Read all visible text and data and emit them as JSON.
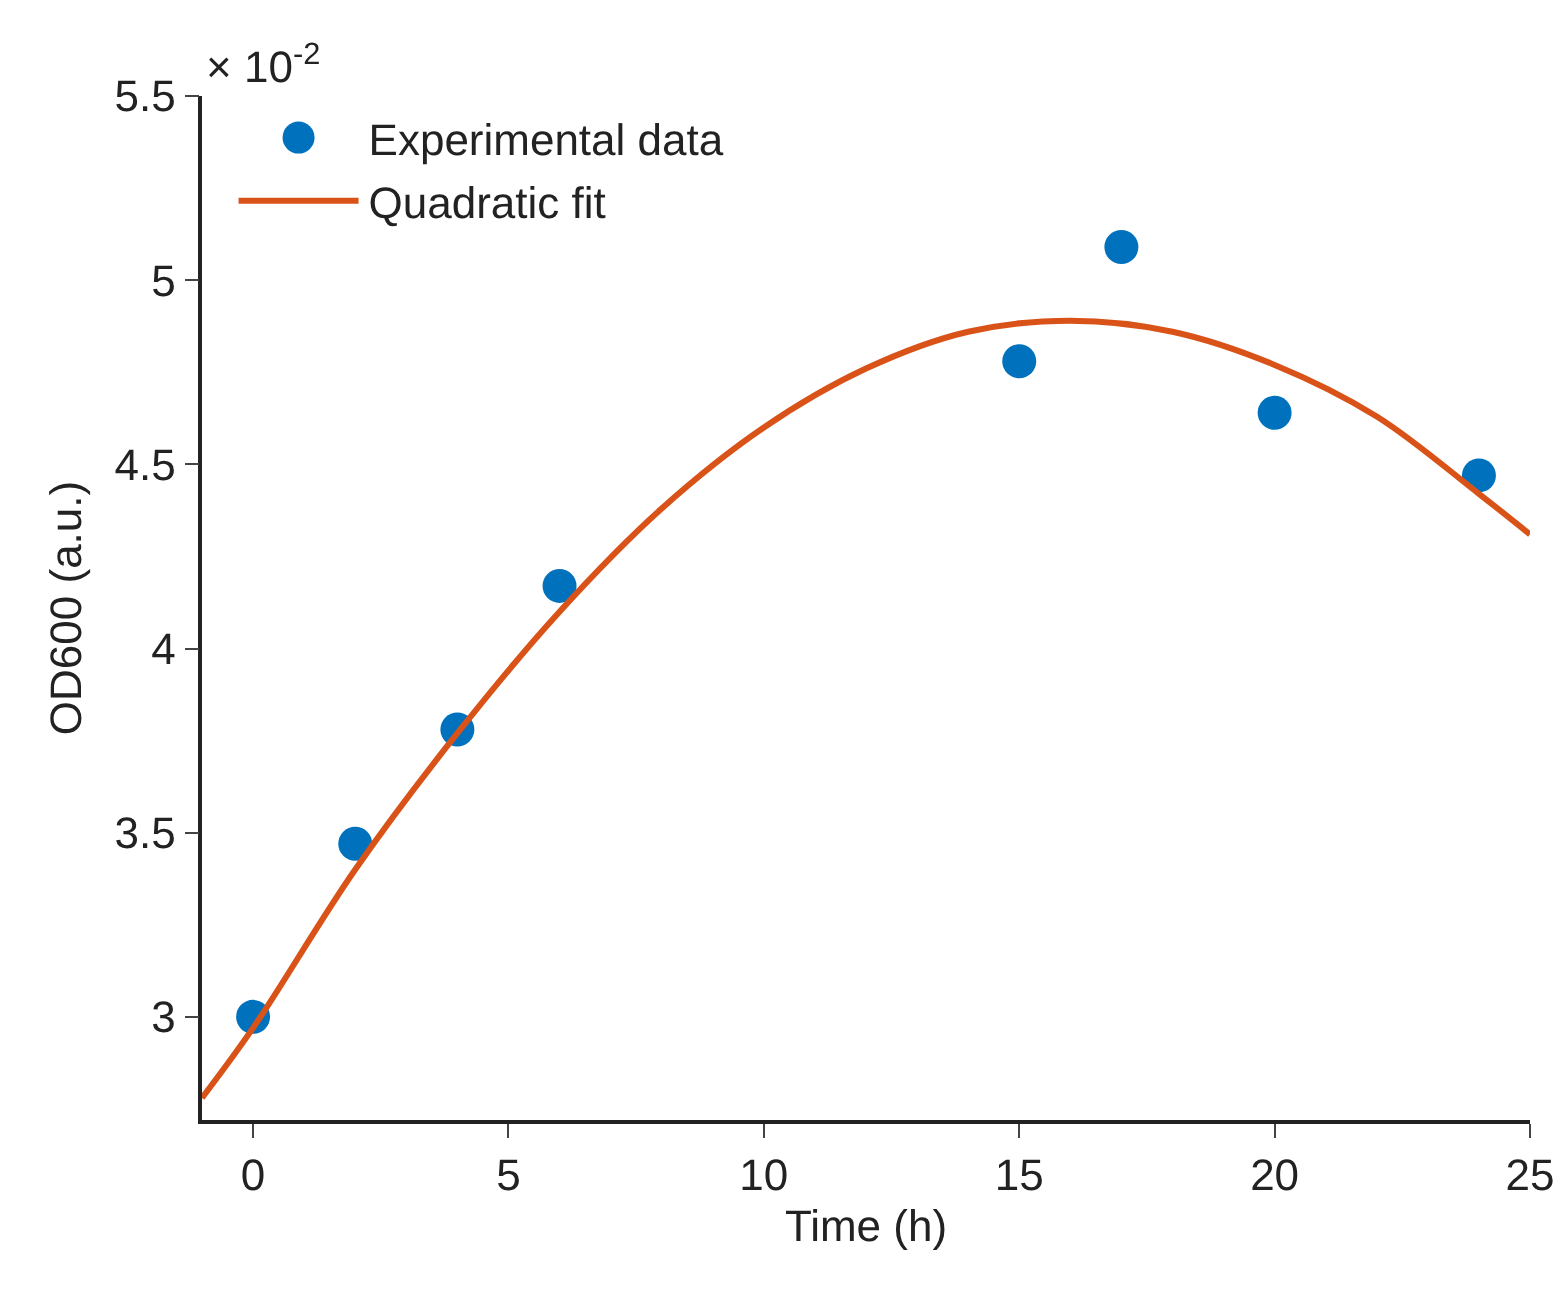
{
  "chart_data": {
    "type": "scatter",
    "xlabel": "Time (h)",
    "ylabel": "OD600 (a.u.)",
    "annotations": [
      "× 10$^{-2}$"
    ],
    "xlim": [
      -1,
      25
    ],
    "xticks": [
      0,
      5,
      10,
      15,
      20,
      25
    ],
    "ylim": [
      2.72,
      5.5
    ],
    "yticks": [
      3,
      3.5,
      4,
      4.5,
      5,
      5.5
    ],
    "grid": false,
    "legend": "top left",
    "series": [
      {
        "name": "Experimental data",
        "marker": "circle",
        "color": "#0072bd",
        "x": [
          0,
          2,
          4,
          6,
          15,
          17,
          20,
          24
        ],
        "values": [
          3.0,
          3.47,
          3.78,
          4.17,
          4.78,
          5.09,
          4.64,
          4.47
        ]
      },
      {
        "name": "Quadratic fit",
        "type": "line",
        "marker": "none",
        "color": "#d95319",
        "line_style": "solid",
        "x": [
          -1,
          0,
          2,
          4,
          6,
          8,
          10,
          12,
          14,
          16,
          18,
          20,
          22,
          24,
          25
        ],
        "values": [
          2.78,
          2.97,
          3.4,
          3.77,
          4.1,
          4.38,
          4.6,
          4.76,
          4.86,
          4.89,
          4.86,
          4.77,
          4.63,
          4.42,
          4.31
        ]
      }
    ]
  }
}
